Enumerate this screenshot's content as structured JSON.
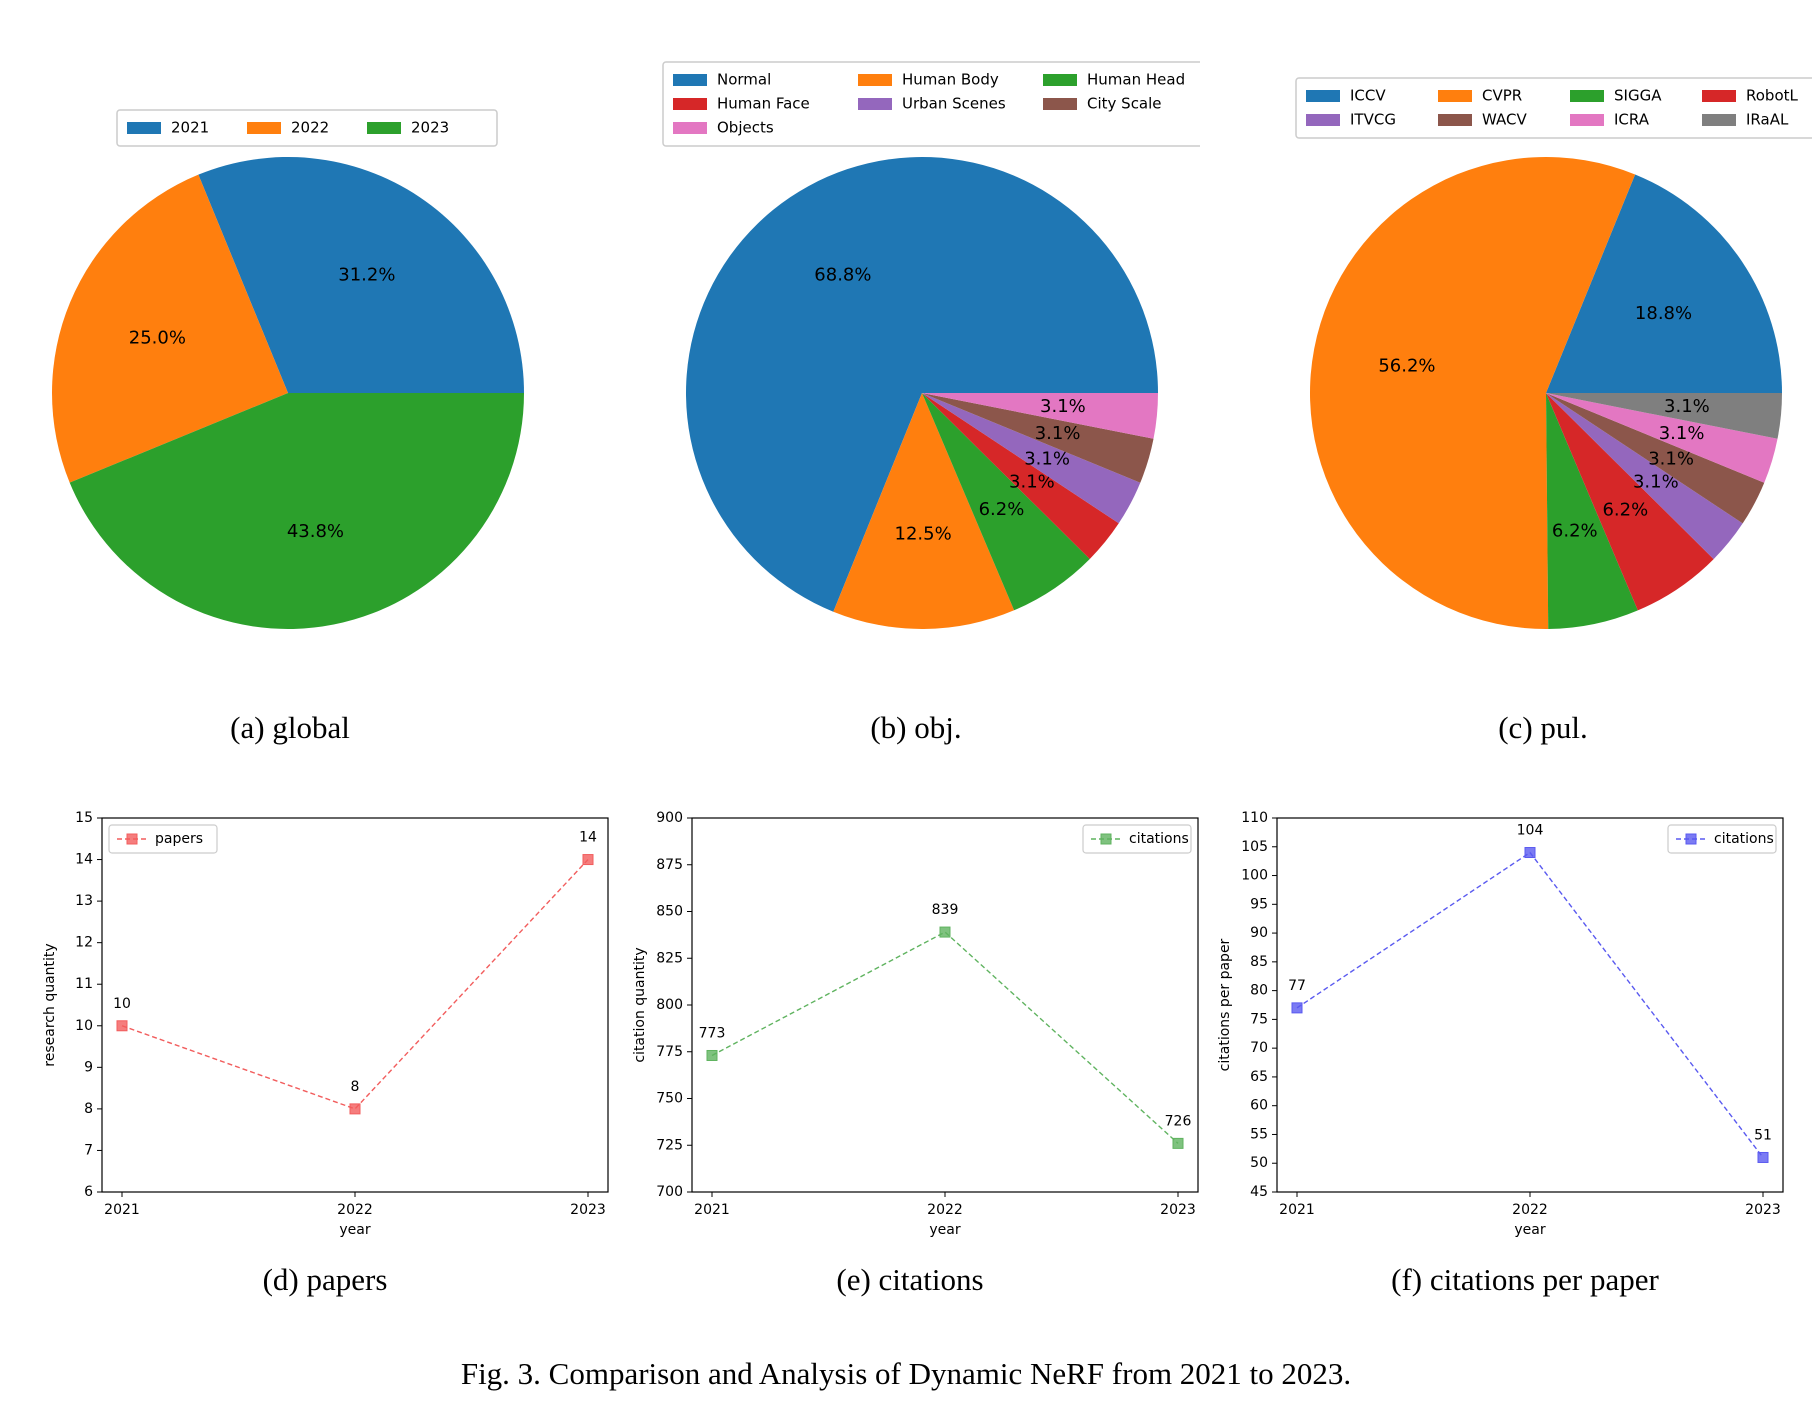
{
  "figure_caption": "Fig. 3.  Comparison and Analysis of Dynamic NeRF from 2021 to 2023.",
  "colors": {
    "blue": "#1f77b4",
    "orange": "#ff7f0e",
    "green": "#2ca02c",
    "red": "#d62728",
    "purple": "#9467bd",
    "brown": "#8c564b",
    "pink": "#e377c2",
    "gray": "#7f7f7f",
    "papers_line": "#f25d5d",
    "citations_line": "#5fb35f",
    "cpp_line": "#5a5af0"
  },
  "chart_data": [
    {
      "type": "pie",
      "caption": "(a) global",
      "legend_columns": 3,
      "slices": [
        {
          "label": "2021",
          "value": 31.2,
          "text": "31.2%",
          "color": "#1f77b4"
        },
        {
          "label": "2022",
          "value": 25.0,
          "text": "25.0%",
          "color": "#ff7f0e"
        },
        {
          "label": "2023",
          "value": 43.8,
          "text": "43.8%",
          "color": "#2ca02c"
        }
      ]
    },
    {
      "type": "pie",
      "caption": "(b) obj.",
      "legend_columns": 3,
      "slices": [
        {
          "label": "Normal",
          "value": 68.8,
          "text": "68.8%",
          "color": "#1f77b4"
        },
        {
          "label": "Human Body",
          "value": 12.5,
          "text": "12.5%",
          "color": "#ff7f0e"
        },
        {
          "label": "Human Head",
          "value": 6.2,
          "text": "6.2%",
          "color": "#2ca02c"
        },
        {
          "label": "Human Face",
          "value": 3.1,
          "text": "3.1%",
          "color": "#d62728"
        },
        {
          "label": "Urban Scenes",
          "value": 3.1,
          "text": "3.1%",
          "color": "#9467bd"
        },
        {
          "label": "City Scale",
          "value": 3.1,
          "text": "3.1%",
          "color": "#8c564b"
        },
        {
          "label": "Objects",
          "value": 3.1,
          "text": "3.1%",
          "color": "#e377c2"
        }
      ]
    },
    {
      "type": "pie",
      "caption": "(c) pul.",
      "legend_columns": 4,
      "slices": [
        {
          "label": "ICCV",
          "value": 18.8,
          "text": "18.8%",
          "color": "#1f77b4"
        },
        {
          "label": "CVPR",
          "value": 56.2,
          "text": "56.2%",
          "color": "#ff7f0e"
        },
        {
          "label": "SIGGA",
          "value": 6.2,
          "text": "6.2%",
          "color": "#2ca02c"
        },
        {
          "label": "RobotL",
          "value": 6.2,
          "text": "6.2%",
          "color": "#d62728"
        },
        {
          "label": "ITVCG",
          "value": 3.1,
          "text": "3.1%",
          "color": "#9467bd"
        },
        {
          "label": "WACV",
          "value": 3.1,
          "text": "3.1%",
          "color": "#8c564b"
        },
        {
          "label": "ICRA",
          "value": 3.1,
          "text": "3.1%",
          "color": "#e377c2"
        },
        {
          "label": "IRaAL",
          "value": 3.1,
          "text": "3.1%",
          "color": "#7f7f7f"
        }
      ]
    },
    {
      "type": "line",
      "caption": "(d) papers",
      "xlabel": "year",
      "ylabel": "research quantity",
      "x": [
        "2021",
        "2022",
        "2023"
      ],
      "ylim": [
        6,
        15
      ],
      "yticks": [
        6,
        7,
        8,
        9,
        10,
        11,
        12,
        13,
        14,
        15
      ],
      "series": [
        {
          "name": "papers",
          "values": [
            10,
            8,
            14
          ],
          "color": "#f25d5d"
        }
      ],
      "legend": "top-left",
      "grid": false
    },
    {
      "type": "line",
      "caption": "(e) citations",
      "xlabel": "year",
      "ylabel": "citation quantity",
      "x": [
        "2021",
        "2022",
        "2023"
      ],
      "ylim": [
        700,
        900
      ],
      "yticks": [
        700,
        725,
        750,
        775,
        800,
        825,
        850,
        875,
        900
      ],
      "series": [
        {
          "name": "citations",
          "values": [
            773,
            839,
            726
          ],
          "color": "#5fb35f"
        }
      ],
      "legend": "top-right",
      "grid": false
    },
    {
      "type": "line",
      "caption": "(f) citations per paper",
      "xlabel": "year",
      "ylabel": "citations per paper",
      "x": [
        "2021",
        "2022",
        "2023"
      ],
      "ylim": [
        45,
        110
      ],
      "yticks": [
        45,
        50,
        55,
        60,
        65,
        70,
        75,
        80,
        85,
        90,
        95,
        100,
        105,
        110
      ],
      "series": [
        {
          "name": "citations",
          "values": [
            77,
            104,
            51
          ],
          "color": "#5a5af0"
        }
      ],
      "legend": "top-right",
      "grid": false
    }
  ]
}
